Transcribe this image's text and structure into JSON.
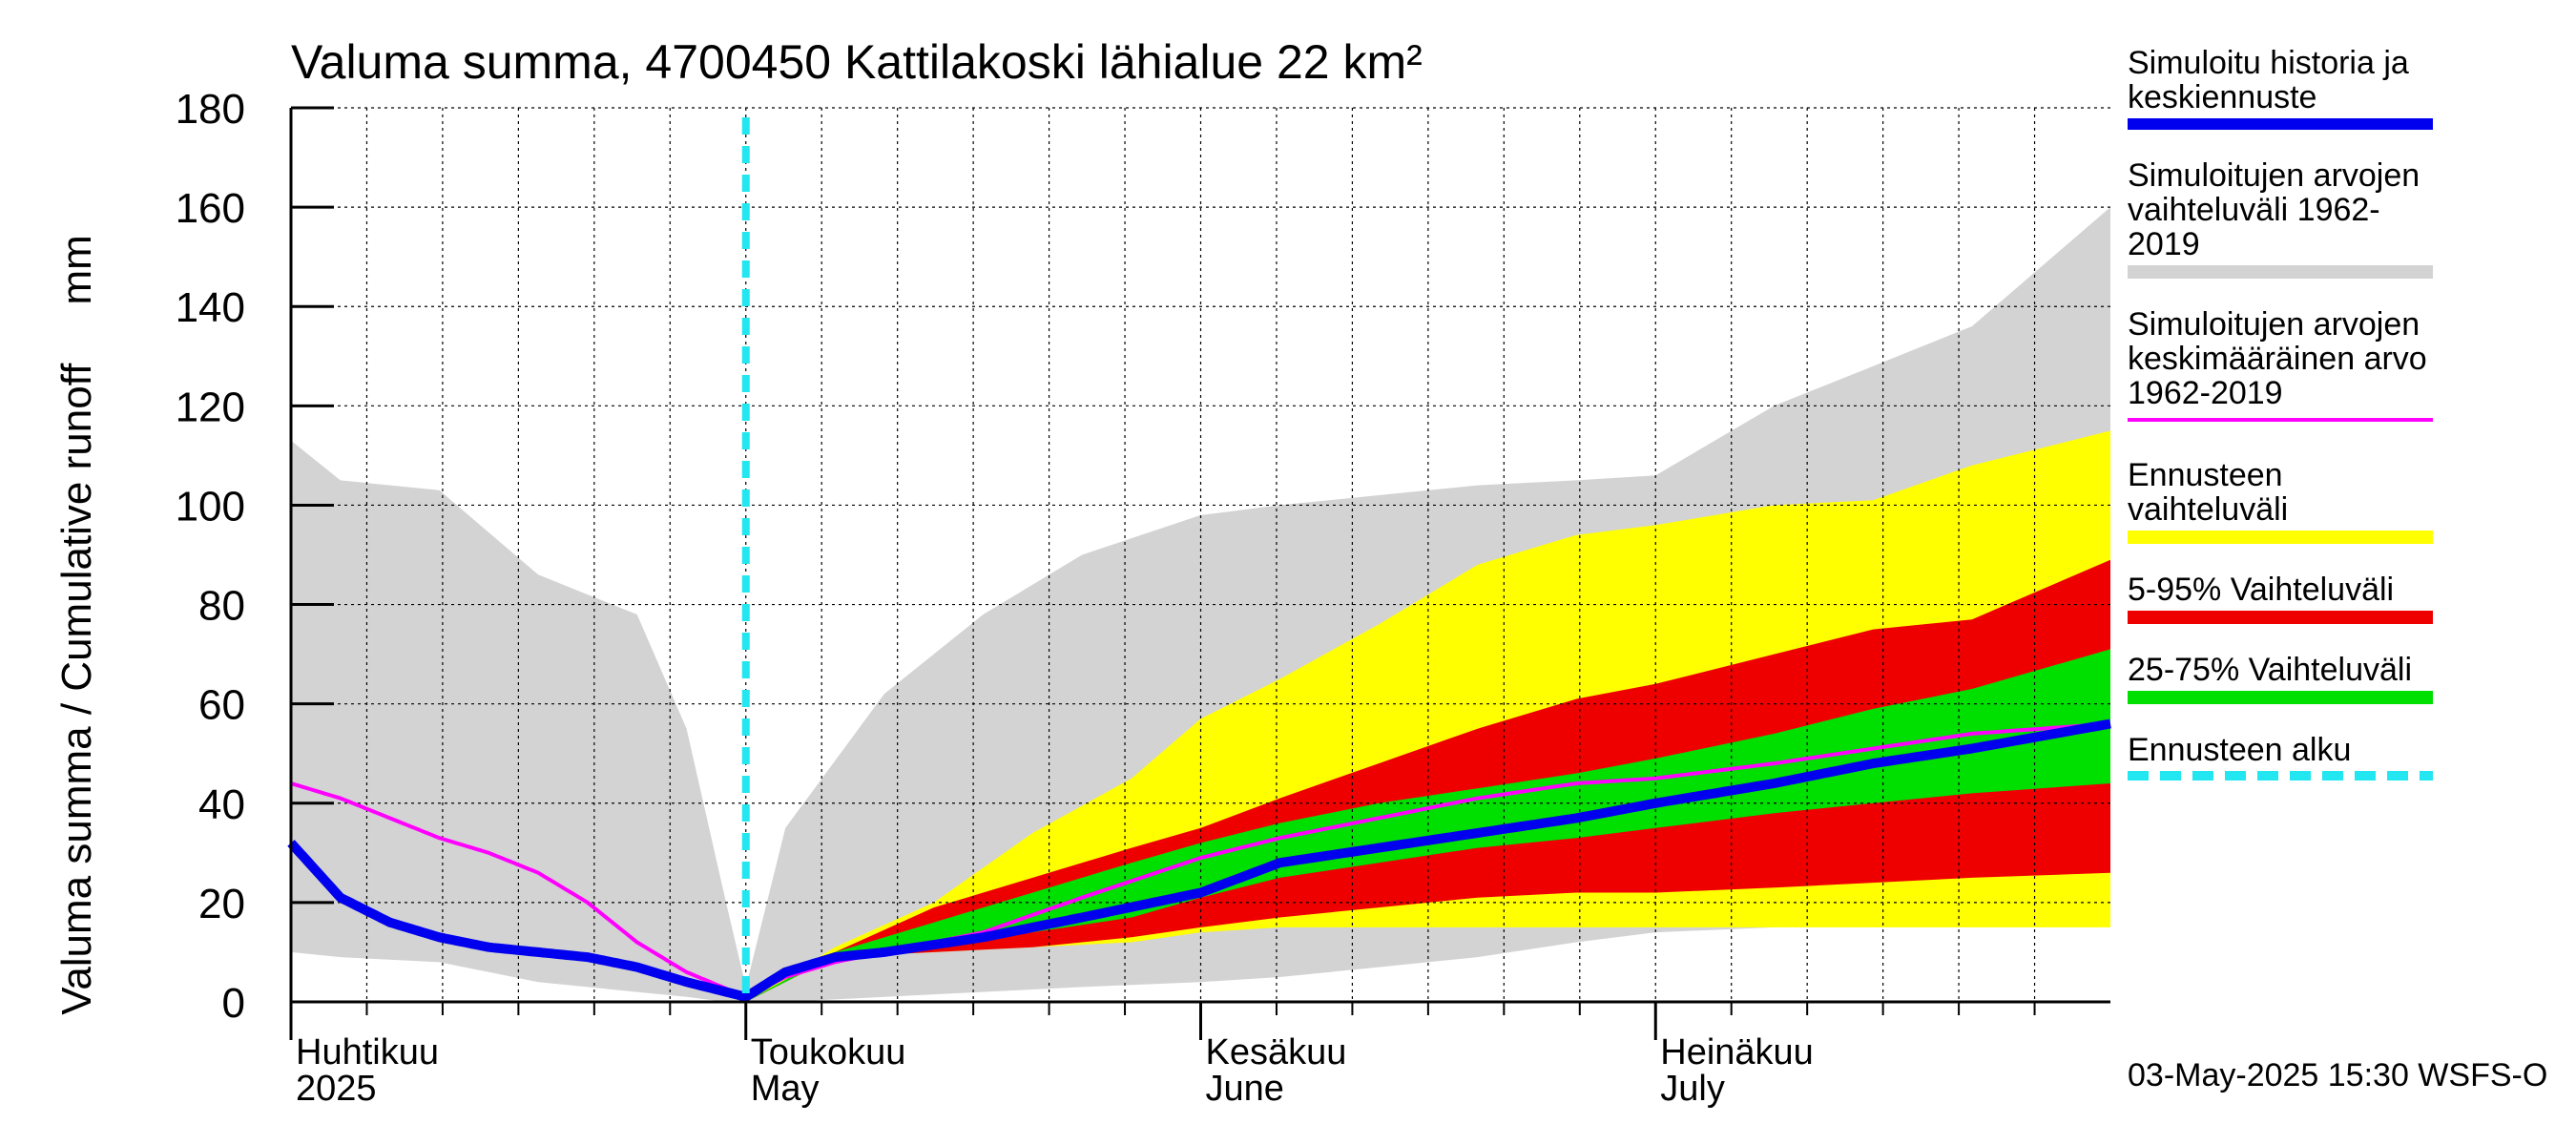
{
  "chart_data": {
    "type": "area",
    "title": "Valuma summa, 4700450 Kattilakoski lähialue 22 km²",
    "ylabel": "Valuma summa / Cumulative runoff     mm",
    "ylim": [
      0,
      180
    ],
    "yticks": [
      0,
      20,
      40,
      60,
      80,
      100,
      120,
      140,
      160,
      180
    ],
    "x_range_days": [
      0,
      184
    ],
    "month_labels": [
      {
        "day": 0,
        "line1": "Huhtikuu",
        "line2": "2025"
      },
      {
        "day": 46,
        "line1": "Toukokuu",
        "line2": "May"
      },
      {
        "day": 92,
        "line1": "Kesäkuu",
        "line2": "June"
      },
      {
        "day": 138,
        "line1": "Heinäkuu",
        "line2": "July"
      }
    ],
    "forecast_start_day": 46,
    "series": [
      {
        "name": "Simuloitujen arvojen vaihteluväli 1962-2019",
        "kind": "band",
        "color": "#d3d3d3",
        "x": [
          0,
          5,
          15,
          25,
          35,
          40,
          44,
          46,
          50,
          60,
          70,
          80,
          92,
          100,
          110,
          120,
          130,
          138,
          150,
          160,
          170,
          184
        ],
        "lower": [
          10,
          9,
          8,
          4,
          2,
          1,
          0,
          0,
          0,
          1,
          2,
          3,
          4,
          5,
          7,
          9,
          12,
          14,
          15,
          16,
          16,
          16
        ],
        "upper": [
          113,
          105,
          103,
          86,
          78,
          55,
          20,
          3,
          35,
          62,
          78,
          90,
          98,
          100,
          102,
          104,
          105,
          106,
          120,
          128,
          136,
          160
        ]
      },
      {
        "name": "Ennusteen vaihteluväli",
        "kind": "band",
        "color": "#ffff00",
        "x": [
          46,
          55,
          65,
          75,
          85,
          92,
          100,
          110,
          120,
          130,
          138,
          150,
          160,
          170,
          184
        ],
        "lower": [
          0,
          9,
          10,
          11,
          12,
          14,
          15,
          15,
          15,
          15,
          15,
          15,
          15,
          15,
          15
        ],
        "upper": [
          0,
          11,
          20,
          34,
          45,
          57,
          65,
          76,
          88,
          94,
          96,
          100,
          101,
          108,
          115
        ]
      },
      {
        "name": "5-95% Vaihteluväli",
        "kind": "band",
        "color": "#ee0000",
        "x": [
          46,
          55,
          65,
          75,
          85,
          92,
          100,
          110,
          120,
          130,
          138,
          150,
          160,
          170,
          184
        ],
        "lower": [
          0,
          9,
          10,
          11,
          13,
          15,
          17,
          19,
          21,
          22,
          22,
          23,
          24,
          25,
          26
        ],
        "upper": [
          0,
          10,
          19,
          25,
          31,
          35,
          41,
          48,
          55,
          61,
          64,
          70,
          75,
          77,
          89
        ]
      },
      {
        "name": "25-75% Vaihteluväli",
        "kind": "band",
        "color": "#00e000",
        "x": [
          46,
          55,
          65,
          75,
          85,
          92,
          100,
          110,
          120,
          130,
          138,
          150,
          160,
          170,
          184
        ],
        "lower": [
          0,
          9,
          11,
          14,
          17,
          21,
          25,
          28,
          31,
          33,
          35,
          38,
          40,
          42,
          44
        ],
        "upper": [
          0,
          10,
          16,
          22,
          28,
          32,
          36,
          40,
          43,
          46,
          49,
          54,
          59,
          63,
          71
        ]
      },
      {
        "name": "Simuloitujen arvojen keskimääräinen arvo 1962-2019",
        "kind": "line",
        "color": "#ff00ff",
        "x": [
          0,
          5,
          10,
          15,
          20,
          25,
          30,
          35,
          40,
          46,
          50,
          55,
          60,
          70,
          80,
          92,
          100,
          110,
          120,
          130,
          138,
          150,
          160,
          170,
          184
        ],
        "y": [
          44,
          41,
          37,
          33,
          30,
          26,
          20,
          12,
          6,
          1,
          5,
          8,
          10,
          14,
          21,
          29,
          33,
          37,
          41,
          44,
          45,
          48,
          51,
          54,
          56
        ]
      },
      {
        "name": "Simuloitu historia ja keskiennuste",
        "kind": "line",
        "color": "#0000ee",
        "x": [
          0,
          5,
          10,
          15,
          20,
          25,
          30,
          35,
          40,
          46,
          50,
          55,
          60,
          70,
          80,
          92,
          100,
          110,
          120,
          130,
          138,
          150,
          160,
          170,
          184
        ],
        "y": [
          32,
          21,
          16,
          13,
          11,
          10,
          9,
          7,
          4,
          1,
          6,
          9,
          10,
          13,
          17,
          22,
          28,
          31,
          34,
          37,
          40,
          44,
          48,
          51,
          56
        ]
      }
    ]
  },
  "legend": [
    {
      "label": "Simuloitu historia ja\nkeskiennuste",
      "color": "#0000ee"
    },
    {
      "label": "Simuloitujen arvojen\nvaihteluväli 1962-2019",
      "color": "#d3d3d3"
    },
    {
      "label": "Simuloitujen arvojen\nkeskimääräinen arvo\n   1962-2019",
      "color": "#ff00ff"
    },
    {
      "label": "Ennusteen vaihteluväli",
      "color": "#ffff00"
    },
    {
      "label": "5-95% Vaihteluväli",
      "color": "#ee0000"
    },
    {
      "label": "25-75% Vaihteluväli",
      "color": "#00e000"
    },
    {
      "label": "Ennusteen alku",
      "color": "#22e6f0"
    }
  ],
  "timestamp": "03-May-2025 15:30 WSFS-O"
}
